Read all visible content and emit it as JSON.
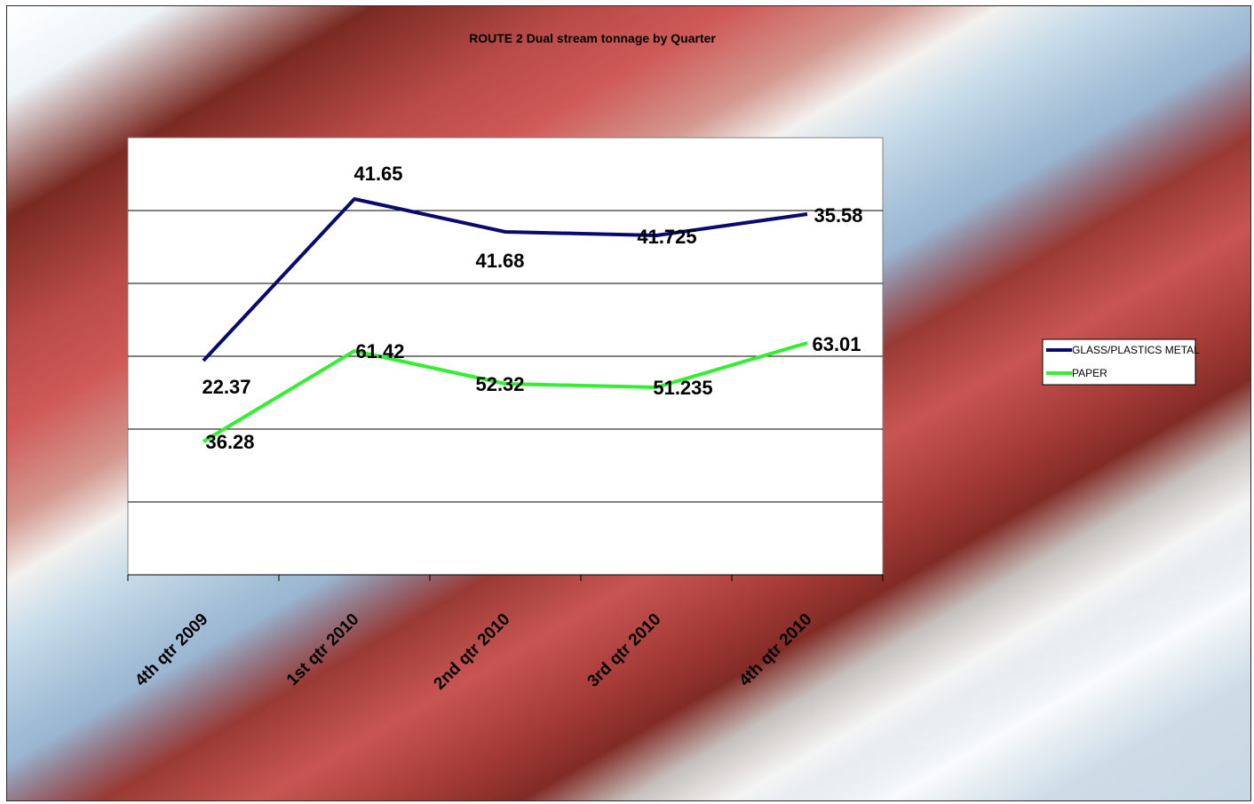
{
  "chart_data": {
    "type": "line",
    "title": "ROUTE 2 Dual stream tonnage by Quarter",
    "categories": [
      "4th qtr 2009",
      "1st qtr 2010",
      "2nd qtr 2010",
      "3rd qtr 2010",
      "4th qtr 2010"
    ],
    "series": [
      {
        "name": "GLASS/PLASTICS METAL",
        "color": "#0a0a6e",
        "values": [
          22.37,
          41.65,
          41.68,
          41.725,
          35.58
        ],
        "labels": [
          "22.37",
          "41.65",
          "41.68",
          "41.725",
          "35.58"
        ]
      },
      {
        "name": "PAPER",
        "color": "#33ee33",
        "values": [
          36.28,
          61.42,
          52.32,
          51.235,
          63.01
        ],
        "labels": [
          "36.28",
          "61.42",
          "52.32",
          "51.235",
          "63.01"
        ]
      }
    ],
    "xlabel": "",
    "ylabel": "",
    "grid": true,
    "legend_position": "right"
  }
}
